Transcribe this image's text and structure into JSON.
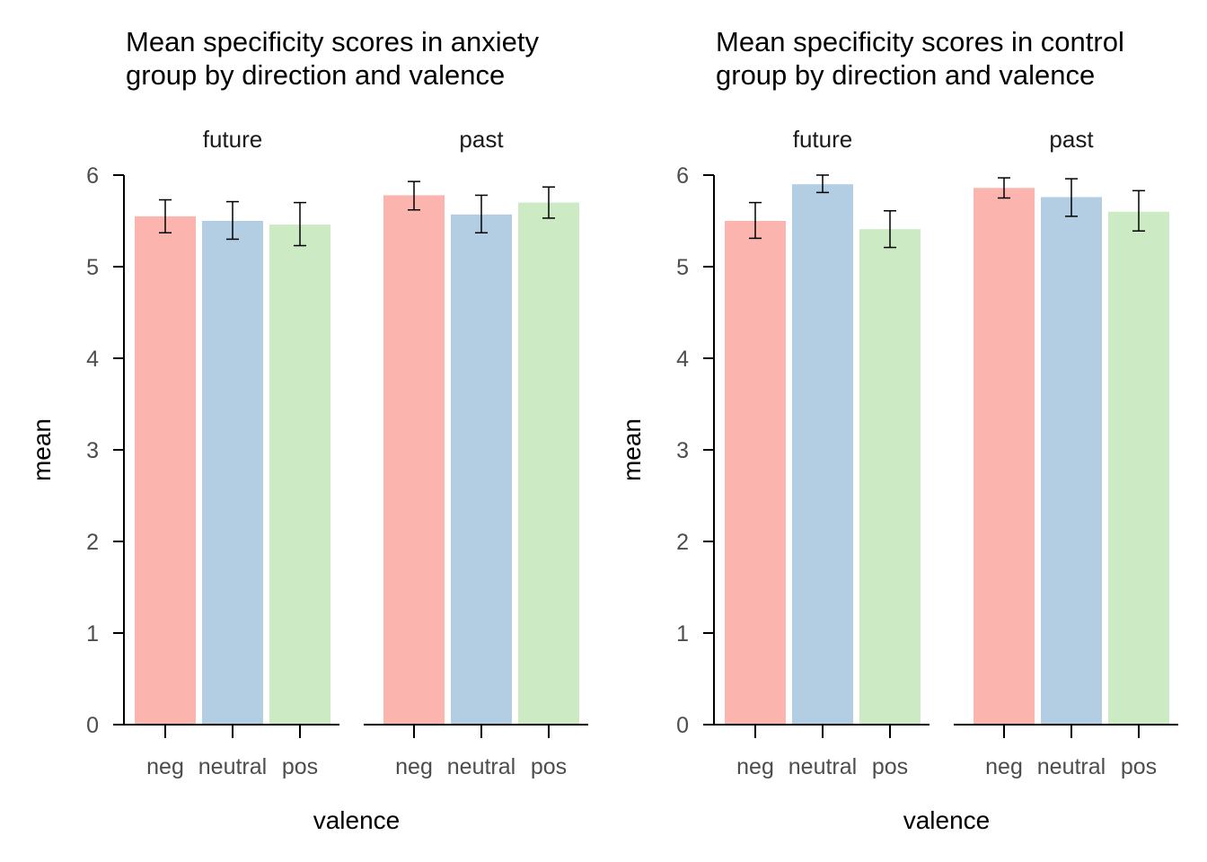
{
  "chart_data": [
    {
      "type": "bar",
      "title": "Mean specificity scores in anxiety\ngroup by direction and valence",
      "xlabel": "valence",
      "ylabel": "mean",
      "ylim": [
        0,
        6
      ],
      "yticks": [
        0,
        1,
        2,
        3,
        4,
        5,
        6
      ],
      "categories": [
        "neg",
        "neutral",
        "pos"
      ],
      "category_colors": [
        "#FBB4AE",
        "#B3CDE3",
        "#CCEBC5"
      ],
      "facets": [
        {
          "name": "future",
          "values": [
            5.55,
            5.5,
            5.46
          ],
          "err_low": [
            5.37,
            5.3,
            5.23
          ],
          "err_high": [
            5.73,
            5.71,
            5.7
          ]
        },
        {
          "name": "past",
          "values": [
            5.78,
            5.57,
            5.7
          ],
          "err_low": [
            5.62,
            5.37,
            5.53
          ],
          "err_high": [
            5.93,
            5.78,
            5.87
          ]
        }
      ],
      "grid": false,
      "legend": "none"
    },
    {
      "type": "bar",
      "title": "Mean specificity scores in control\ngroup by direction and valence",
      "xlabel": "valence",
      "ylabel": "mean",
      "ylim": [
        0,
        6
      ],
      "yticks": [
        0,
        1,
        2,
        3,
        4,
        5,
        6
      ],
      "categories": [
        "neg",
        "neutral",
        "pos"
      ],
      "category_colors": [
        "#FBB4AE",
        "#B3CDE3",
        "#CCEBC5"
      ],
      "facets": [
        {
          "name": "future",
          "values": [
            5.5,
            5.9,
            5.41
          ],
          "err_low": [
            5.31,
            5.81,
            5.21
          ],
          "err_high": [
            5.7,
            6.0,
            5.61
          ]
        },
        {
          "name": "past",
          "values": [
            5.86,
            5.76,
            5.6
          ],
          "err_low": [
            5.75,
            5.55,
            5.39
          ],
          "err_high": [
            5.97,
            5.96,
            5.83
          ]
        }
      ],
      "grid": false,
      "legend": "none"
    }
  ]
}
